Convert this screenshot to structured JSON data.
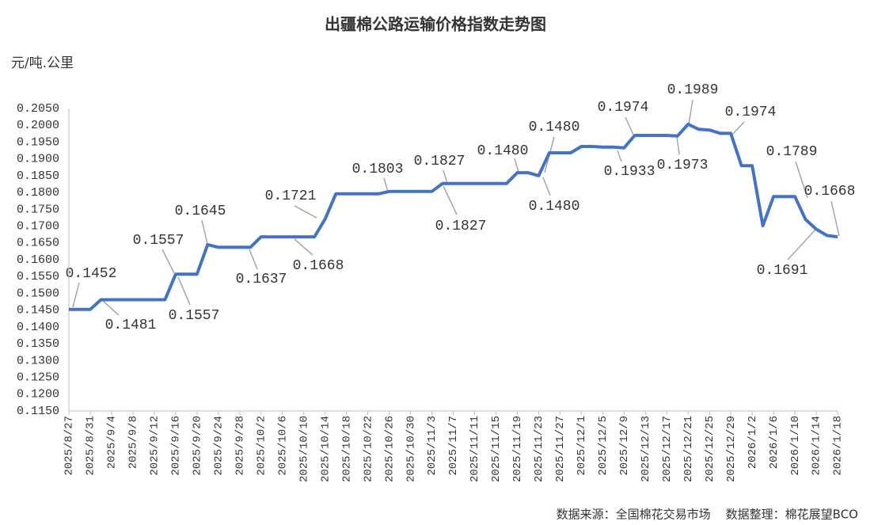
{
  "chart_data": {
    "type": "line",
    "title": "出疆棉公路运输价格指数走势图",
    "y_label": "元/吨.公里",
    "source": "数据来源：全国棉花交易市场    数据整理：棉花展望BCO",
    "categories": [
      "2025/8/27",
      null,
      "2025/8/31",
      null,
      "2025/9/4",
      null,
      "2025/9/8",
      null,
      "2025/9/12",
      null,
      "2025/9/16",
      null,
      "2025/9/20",
      null,
      "2025/9/24",
      null,
      "2025/9/28",
      null,
      "2025/10/2",
      null,
      "2025/10/6",
      null,
      "2025/10/10",
      null,
      "2025/10/14",
      null,
      "2025/10/18",
      null,
      "2025/10/22",
      null,
      "2025/10/26",
      null,
      "2025/10/30",
      null,
      "2025/11/3",
      null,
      "2025/11/7",
      null,
      "2025/11/11",
      null,
      "2025/11/15",
      null,
      "2025/11/19",
      null,
      "2025/11/23",
      null,
      "2025/11/27",
      null,
      "2025/12/1",
      null,
      "2025/12/5",
      null,
      "2025/12/9",
      null,
      "2025/12/13",
      null,
      "2025/12/17",
      null,
      "2025/12/21",
      null,
      "2025/12/25",
      null,
      "2025/12/29",
      null,
      "2026/1/2",
      null,
      "2026/1/6",
      null,
      "2026/1/10",
      null,
      "2026/1/14",
      null,
      "2026/1/18"
    ],
    "series": [
      {
        "name": "出疆棉公路运输价格指数",
        "color": "#4472c4",
        "values": [
          0.1452,
          0.1452,
          0.1452,
          0.1481,
          0.1481,
          0.1481,
          0.1481,
          0.1481,
          0.1481,
          0.1481,
          0.1557,
          0.1557,
          0.1557,
          0.1645,
          0.1637,
          0.1637,
          0.1637,
          0.1637,
          0.1668,
          0.1668,
          0.1668,
          0.1668,
          0.1668,
          0.1668,
          0.1721,
          0.1796,
          0.1796,
          0.1796,
          0.1796,
          0.1796,
          0.1803,
          0.1803,
          0.1803,
          0.1803,
          0.1803,
          0.1827,
          0.1827,
          0.1827,
          0.1827,
          0.1827,
          0.1827,
          0.1827,
          0.1859,
          0.1859,
          0.185,
          0.1918,
          0.1918,
          0.1918,
          0.1937,
          0.1937,
          0.1935,
          0.1935,
          0.1933,
          0.197,
          0.197,
          0.197,
          0.197,
          0.1968,
          0.2003,
          0.1988,
          0.1986,
          0.1976,
          0.1976,
          0.188,
          0.188,
          0.1701,
          0.1788,
          0.1788,
          0.1788,
          0.172,
          0.1691,
          0.1672,
          0.1668
        ]
      }
    ],
    "ylim": [
      0.115,
      0.205
    ],
    "yticks": [
      {
        "value": 0.115,
        "label": "0.1150"
      },
      {
        "value": 0.12,
        "label": "0.1200"
      },
      {
        "value": 0.125,
        "label": "0.1250"
      },
      {
        "value": 0.13,
        "label": "0.1300"
      },
      {
        "value": 0.135,
        "label": "0.1350"
      },
      {
        "value": 0.14,
        "label": "0.1400"
      },
      {
        "value": 0.145,
        "label": "0.1450"
      },
      {
        "value": 0.15,
        "label": "0.1500"
      },
      {
        "value": 0.155,
        "label": "0.1550"
      },
      {
        "value": 0.16,
        "label": "0.1600"
      },
      {
        "value": 0.165,
        "label": "0.1650"
      },
      {
        "value": 0.17,
        "label": "0.1700"
      },
      {
        "value": 0.175,
        "label": "0.1750"
      },
      {
        "value": 0.18,
        "label": "0.1800"
      },
      {
        "value": 0.185,
        "label": "0.1850"
      },
      {
        "value": 0.19,
        "label": "0.1900"
      },
      {
        "value": 0.195,
        "label": "0.1950"
      },
      {
        "value": 0.2,
        "label": "0.2000"
      },
      {
        "value": 0.205,
        "label": "0.2050"
      }
    ],
    "grid": false,
    "annotations": [
      "0.1452",
      "0.1481",
      "0.1557",
      "0.1557",
      "0.1645",
      "0.1637",
      "0.1721",
      "0.1668",
      "0.1803",
      "0.1827",
      "0.1827",
      "0.1480",
      "0.1480",
      "0.1480",
      "0.1974",
      "0.1933",
      "0.1973",
      "0.1989",
      "0.1974",
      "0.1789",
      "0.1668",
      "0.1691"
    ]
  }
}
